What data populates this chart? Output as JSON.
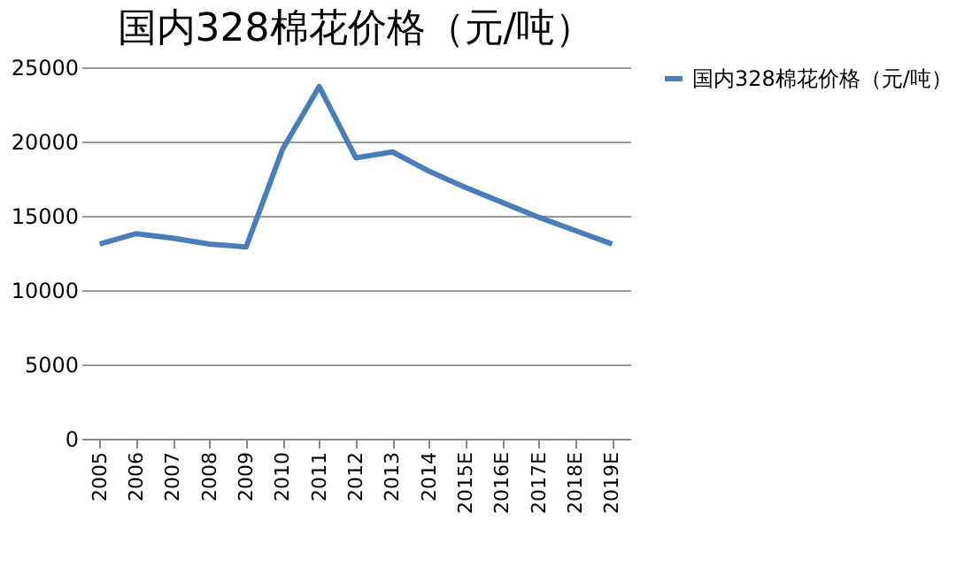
{
  "chart_data": {
    "type": "line",
    "title": "国内328棉花价格（元/吨）",
    "categories": [
      "2005",
      "2006",
      "2007",
      "2008",
      "2009",
      "2010",
      "2011",
      "2012",
      "2013",
      "2014",
      "2015E",
      "2016E",
      "2017E",
      "2018E",
      "2019E"
    ],
    "series": [
      {
        "name": "国内328棉花价格（元/吨）",
        "color": "#4a7ebb",
        "values": [
          13100,
          13800,
          13500,
          13100,
          12900,
          19500,
          23700,
          18900,
          19300,
          18000,
          16900,
          15900,
          14900,
          14000,
          13100
        ]
      }
    ],
    "ylim": [
      0,
      25000
    ],
    "yticks": [
      0,
      5000,
      10000,
      15000,
      20000,
      25000
    ],
    "grid": "y",
    "legend": "right",
    "marker": "none",
    "line_style": "solid"
  }
}
